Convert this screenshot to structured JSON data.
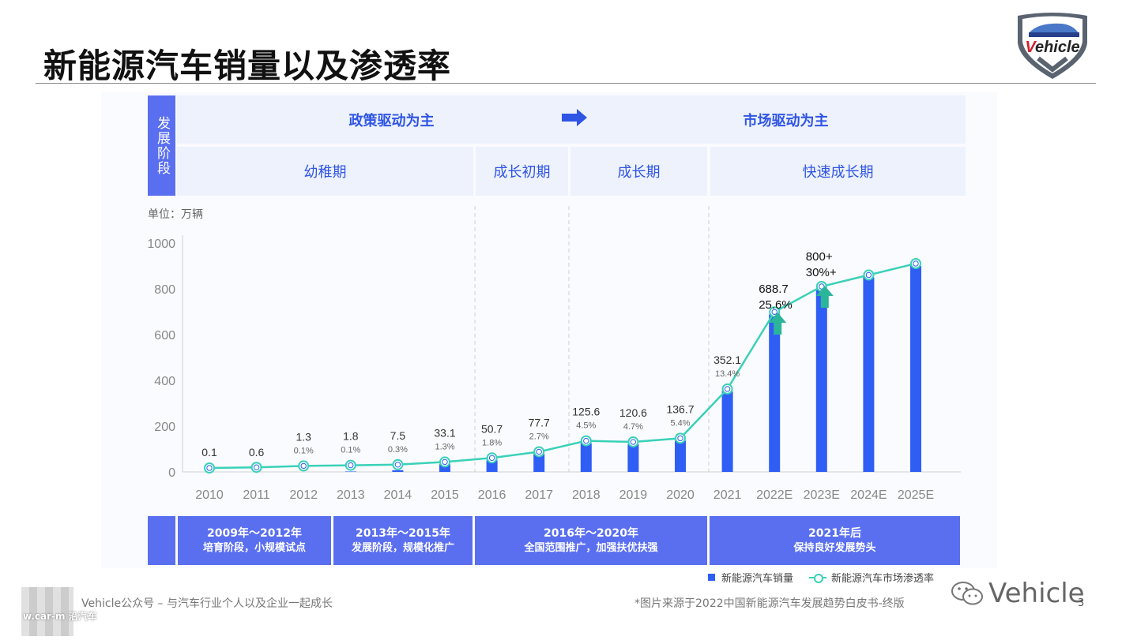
{
  "title": "新能源汽车销量以及渗透率",
  "logo_text": "Vehicle",
  "stages": {
    "label": "发展阶段",
    "drivers": [
      "政策驱动为主",
      "市场驱动为主"
    ],
    "phases": [
      "幼稚期",
      "成长初期",
      "成长期",
      "快速成长期"
    ]
  },
  "unit_label": "单位：万辆",
  "periods": [
    {
      "years": "2009年～2012年",
      "desc": "培育阶段，小规模试点"
    },
    {
      "years": "2013年～2015年",
      "desc": "发展阶段，规模化推广"
    },
    {
      "years": "2016年～2020年",
      "desc": "全国范围推广，加强扶优扶强"
    },
    {
      "years": "2021年后",
      "desc": "保持良好发展势头"
    }
  ],
  "chart_data": {
    "type": "bar",
    "categories": [
      "2010",
      "2011",
      "2012",
      "2013",
      "2014",
      "2015",
      "2016",
      "2017",
      "2018",
      "2019",
      "2020",
      "2021",
      "2022E",
      "2023E",
      "2024E",
      "2025E"
    ],
    "series": [
      {
        "name": "新能源汽车销量",
        "type": "bar",
        "values": [
          0.1,
          0.6,
          1.3,
          1.8,
          7.5,
          33.1,
          50.7,
          77.7,
          125.6,
          120.6,
          136.7,
          352.1,
          688.7,
          800,
          850,
          900
        ]
      },
      {
        "name": "新能源汽车市场渗透率",
        "type": "line",
        "values": [
          0.1,
          0.1,
          0.1,
          0.1,
          0.3,
          1.3,
          1.8,
          2.7,
          4.5,
          4.7,
          5.4,
          13.4,
          25.6,
          30,
          33,
          37
        ]
      }
    ],
    "bar_labels": [
      "0.1",
      "0.6",
      "1.3",
      "1.8",
      "7.5",
      "33.1",
      "50.7",
      "77.7",
      "125.6",
      "120.6",
      "136.7",
      "352.1",
      "688.7",
      "800+",
      "",
      ""
    ],
    "rate_labels": [
      "",
      "",
      "0.1%",
      "0.1%",
      "0.3%",
      "1.3%",
      "1.8%",
      "2.7%",
      "4.5%",
      "4.7%",
      "5.4%",
      "13.4%",
      "25.6%",
      "30%+",
      "",
      ""
    ],
    "ylim": [
      0,
      1000
    ],
    "yticks": [
      0,
      200,
      400,
      600,
      800,
      1000
    ],
    "grid": false,
    "legend": "bottom-right",
    "colors": {
      "bar": "#2f5ef5",
      "line": "#3ad1b8",
      "arrow": "#2bb59a"
    }
  },
  "footer": {
    "left": "Vehicle公众号 – 与汽车行业个人以及企业一起成长",
    "right": "*图片来源于2022中国新能源汽车发展趋势白皮书-终版",
    "wechat": "Vehicle",
    "page": "3",
    "watermark": "w.car-m 沿汽车"
  }
}
